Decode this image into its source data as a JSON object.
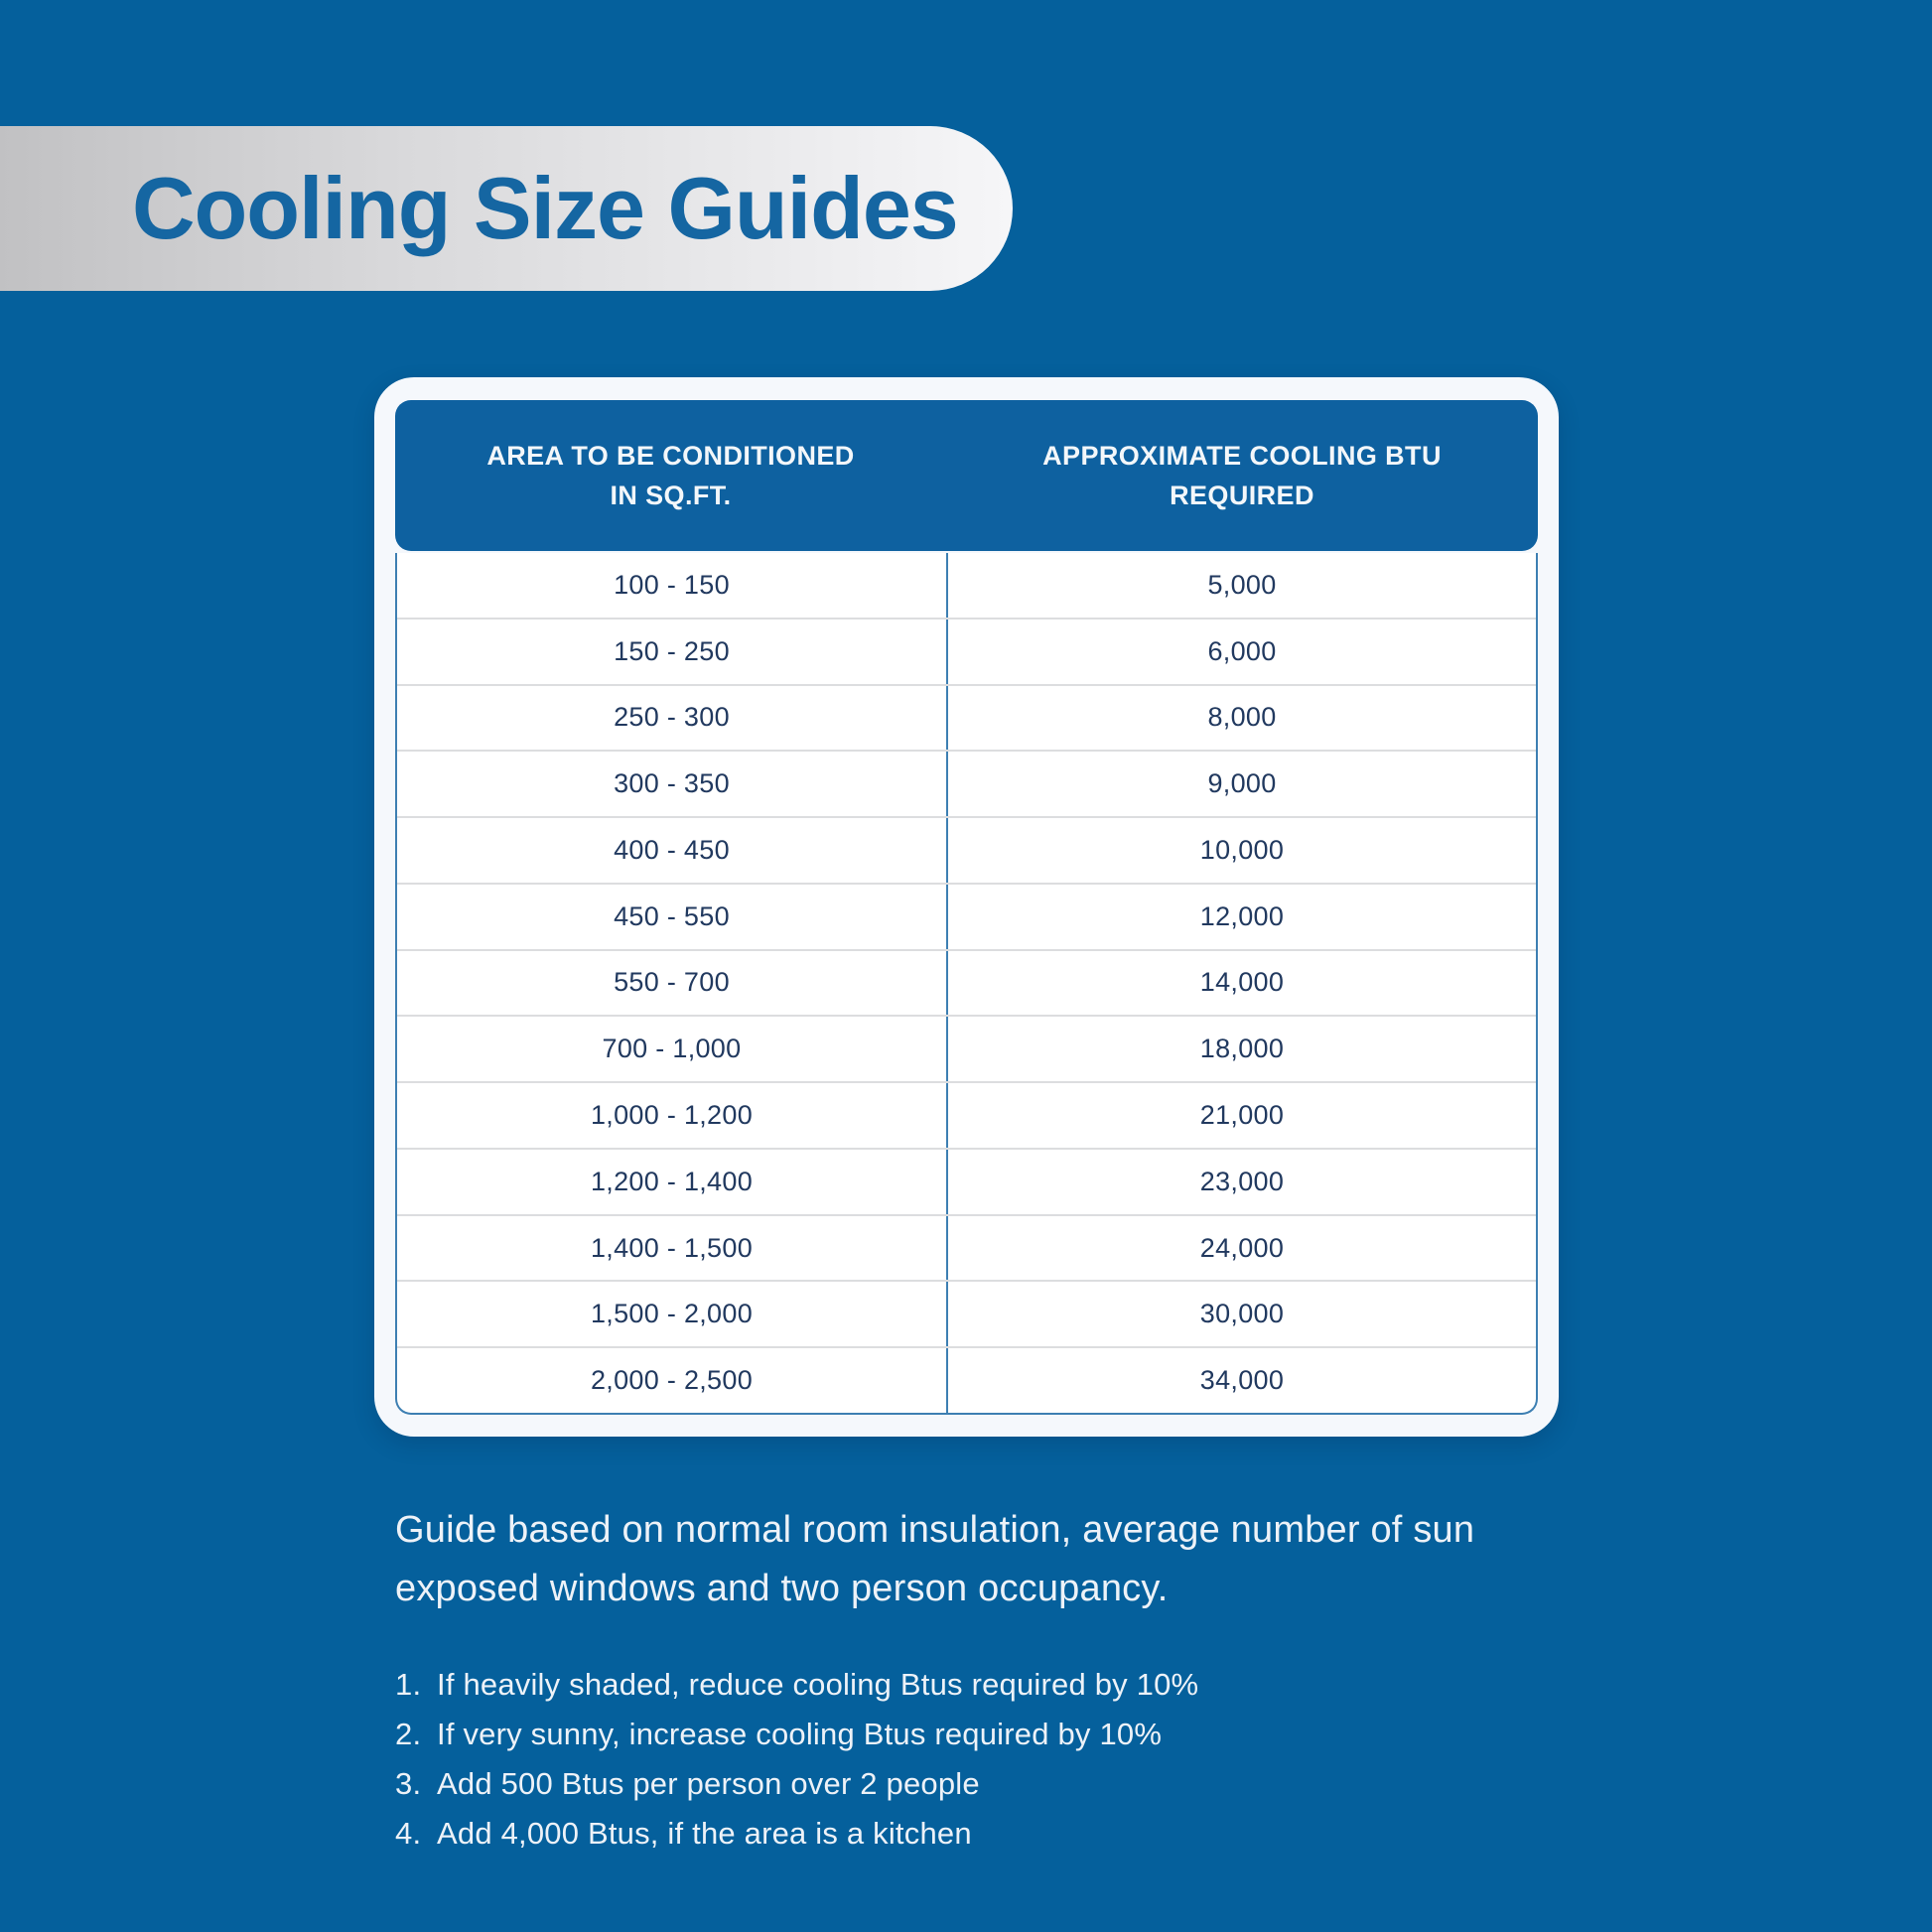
{
  "banner": {
    "title": "Cooling Size Guides"
  },
  "table": {
    "header": {
      "col1": "AREA TO BE CONDITIONED\nIN SQ.FT.",
      "col2": "APPROXIMATE COOLING BTU\nREQUIRED"
    },
    "rows": [
      {
        "area": "100 - 150",
        "btu": "5,000"
      },
      {
        "area": "150 - 250",
        "btu": "6,000"
      },
      {
        "area": "250 - 300",
        "btu": "8,000"
      },
      {
        "area": "300 - 350",
        "btu": "9,000"
      },
      {
        "area": "400 - 450",
        "btu": "10,000"
      },
      {
        "area": "450 - 550",
        "btu": "12,000"
      },
      {
        "area": "550 - 700",
        "btu": "14,000"
      },
      {
        "area": "700 - 1,000",
        "btu": "18,000"
      },
      {
        "area": "1,000 - 1,200",
        "btu": "21,000"
      },
      {
        "area": "1,200 - 1,400",
        "btu": "23,000"
      },
      {
        "area": "1,400 - 1,500",
        "btu": "24,000"
      },
      {
        "area": "1,500 - 2,000",
        "btu": "30,000"
      },
      {
        "area": "2,000 - 2,500",
        "btu": "34,000"
      }
    ]
  },
  "footer": {
    "guide_text": "Guide based on normal room insulation, average number of sun exposed windows and two person occupancy.",
    "notes": [
      {
        "num": "1.",
        "text": "If heavily shaded, reduce cooling Btus required by 10%"
      },
      {
        "num": "2.",
        "text": "If very sunny, increase cooling Btus required by 10%"
      },
      {
        "num": "3.",
        "text": "Add 500 Btus per person over 2 people"
      },
      {
        "num": "4.",
        "text": "Add 4,000 Btus, if the area is a kitchen"
      }
    ]
  },
  "colors": {
    "background": "#05609C",
    "banner_gradient_start": "#c1c1c3",
    "banner_gradient_end": "#f6f6f8",
    "title_text": "#1566a2",
    "table_header_bg": "#0e61a0",
    "table_header_text": "#f3f7fa",
    "table_border_blue": "#3d7fb2",
    "row_separator": "#dcdddf",
    "cell_text": "#21395f",
    "card_bg": "#f5f8fc",
    "footer_text": "#edf2f8"
  }
}
